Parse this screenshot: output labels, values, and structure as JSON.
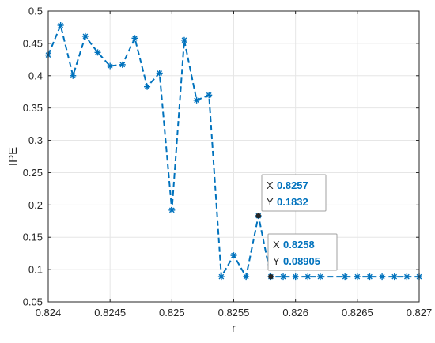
{
  "chart_data": {
    "type": "line",
    "xlabel": "r",
    "ylabel": "IPE",
    "xlim": [
      0.824,
      0.827
    ],
    "ylim": [
      0.05,
      0.5
    ],
    "x_ticks": [
      "0.824",
      "0.8245",
      "0.825",
      "0.8255",
      "0.826",
      "0.8265",
      "0.827"
    ],
    "x_tick_values": [
      0.824,
      0.8245,
      0.825,
      0.8255,
      0.826,
      0.8265,
      0.827
    ],
    "y_ticks": [
      "0.05",
      "0.1",
      "0.15",
      "0.2",
      "0.25",
      "0.3",
      "0.35",
      "0.4",
      "0.45",
      "0.5"
    ],
    "y_tick_values": [
      0.05,
      0.1,
      0.15,
      0.2,
      0.25,
      0.3,
      0.35,
      0.4,
      0.45,
      0.5
    ],
    "grid": true,
    "series": [
      {
        "line_style": "dashed",
        "marker": "asterisk",
        "color": "#0072BD",
        "x": [
          0.824,
          0.8241,
          0.8242,
          0.8243,
          0.8244,
          0.8245,
          0.8246,
          0.8247,
          0.8248,
          0.8249,
          0.825,
          0.8251,
          0.8252,
          0.8253,
          0.8254,
          0.8255,
          0.8256,
          0.8257,
          0.8258,
          0.8259,
          0.826,
          0.8261,
          0.8262,
          0.8264,
          0.8265,
          0.8266,
          0.8267,
          0.8268,
          0.8269,
          0.827
        ],
        "y": [
          0.432,
          0.478,
          0.4,
          0.461,
          0.436,
          0.415,
          0.417,
          0.458,
          0.383,
          0.404,
          0.192,
          0.455,
          0.362,
          0.37,
          0.089,
          0.122,
          0.089,
          0.1832,
          0.08905,
          0.089,
          0.089,
          0.089,
          0.089,
          0.089,
          0.089,
          0.089,
          0.089,
          0.089,
          0.089,
          0.089
        ]
      }
    ],
    "datatips": [
      {
        "x_label": "X",
        "x_value": "0.8257",
        "y_label": "Y",
        "y_value": "0.1832",
        "x": 0.8257,
        "y": 0.1832
      },
      {
        "x_label": "X",
        "x_value": "0.8258",
        "y_label": "Y",
        "y_value": "0.08905",
        "x": 0.8258,
        "y": 0.08905
      }
    ],
    "colors": {
      "series": "#0072BD",
      "datatip_value": "#0072BD",
      "grid": "#e6e6e6",
      "axis": "#262626"
    }
  }
}
